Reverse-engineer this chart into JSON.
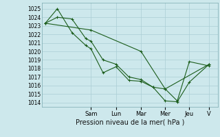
{
  "background_color": "#cde8ec",
  "grid_color": "#aacdd4",
  "line_color": "#1a5c1a",
  "xlabel": "Pression niveau de la mer( hPa )",
  "ylim": [
    1013.5,
    1025.7
  ],
  "xlim": [
    0.0,
    1.02
  ],
  "yticks": [
    1014,
    1015,
    1016,
    1017,
    1018,
    1019,
    1020,
    1021,
    1022,
    1023,
    1024,
    1025
  ],
  "x_day_labels": [
    "Sam",
    "Lun",
    "Mar",
    "Mer",
    "Jeu",
    "V"
  ],
  "x_day_positions": [
    0.285,
    0.43,
    0.575,
    0.715,
    0.855,
    0.97
  ],
  "series": [
    {
      "x": [
        0.02,
        0.09,
        0.175,
        0.255,
        0.285,
        0.355,
        0.43,
        0.505,
        0.575,
        0.645,
        0.715,
        0.785,
        0.855,
        0.97
      ],
      "y": [
        1023.3,
        1025.0,
        1022.2,
        1020.7,
        1020.3,
        1017.5,
        1018.2,
        1016.6,
        1016.5,
        1015.8,
        1015.6,
        1014.2,
        1018.8,
        1018.3
      ]
    },
    {
      "x": [
        0.02,
        0.09,
        0.175,
        0.255,
        0.285,
        0.355,
        0.43,
        0.505,
        0.575,
        0.645,
        0.715,
        0.785,
        0.855,
        0.97
      ],
      "y": [
        1023.3,
        1024.0,
        1023.8,
        1021.5,
        1021.2,
        1019.0,
        1018.5,
        1017.0,
        1016.7,
        1015.8,
        1014.2,
        1014.1,
        1016.4,
        1018.5
      ]
    },
    {
      "x": [
        0.02,
        0.285,
        0.575,
        0.715,
        0.97
      ],
      "y": [
        1023.3,
        1022.5,
        1020.0,
        1015.6,
        1018.5
      ]
    }
  ]
}
